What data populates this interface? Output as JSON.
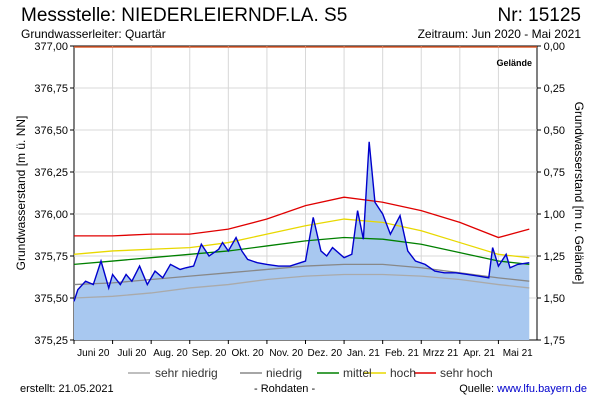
{
  "header": {
    "station": "Messstelle: NIEDERLEIERNDF.LA. S5",
    "number": "Nr: 15125",
    "aquifer": "Grundwasserleiter: Quartär",
    "period": "Zeitraum: Jun 2020 - Mai 2021"
  },
  "footer": {
    "created": "erstellt:  21.05.2021",
    "raw": "- Rohdaten -",
    "source_label": "Quelle: ",
    "source_link": "www.lfu.bayern.de"
  },
  "colors": {
    "measured_line": "#0000cc",
    "measured_fill": "#a8c8f0",
    "sehr_niedrig": "#aaaaaa",
    "niedrig": "#888888",
    "mittel": "#008000",
    "hoch": "#e8d800",
    "sehr_hoch": "#e00000",
    "gelaende": "#e06030",
    "grid": "#d8d8d8"
  },
  "chart_data": {
    "type": "line",
    "ylabel": "Grundwasserstand [m ü. NN]",
    "ylabel_right": "Grundwasserstand [m u. Gelände]",
    "ylim": [
      375.25,
      377.0
    ],
    "y_ticks": [
      "375,25",
      "375,50",
      "375,75",
      "376,00",
      "376,25",
      "376,50",
      "376,75",
      "377,00"
    ],
    "y_right_ticks": [
      "0,00",
      "0,25",
      "0,50",
      "0,75",
      "1,00",
      "1,25",
      "1,50",
      "1,75"
    ],
    "ground_level": 377.0,
    "ground_label": "Gelände",
    "x_ticks": [
      "Juni 20",
      "Juli 20",
      "Aug. 20",
      "Sep. 20",
      "Okt. 20",
      "Nov. 20",
      "Dez. 20",
      "Jan. 21",
      "Feb. 21",
      "Mrzz 21",
      "Apr. 21",
      "Mai 21"
    ],
    "grid": true,
    "legend_position": "bottom",
    "series": [
      {
        "name": "sehr niedrig",
        "x": [
          0,
          1,
          2,
          3,
          4,
          5,
          6,
          7,
          8,
          9,
          10,
          11,
          11.8
        ],
        "values": [
          375.5,
          375.51,
          375.53,
          375.56,
          375.58,
          375.61,
          375.63,
          375.64,
          375.64,
          375.63,
          375.61,
          375.58,
          375.56
        ]
      },
      {
        "name": "niedrig",
        "x": [
          0,
          1,
          2,
          3,
          4,
          5,
          6,
          7,
          8,
          9,
          10,
          11,
          11.8
        ],
        "values": [
          375.58,
          375.59,
          375.61,
          375.63,
          375.65,
          375.67,
          375.69,
          375.7,
          375.7,
          375.68,
          375.65,
          375.62,
          375.6
        ]
      },
      {
        "name": "mittel",
        "x": [
          0,
          1,
          2,
          3,
          4,
          5,
          6,
          7,
          8,
          9,
          10,
          11,
          11.8
        ],
        "values": [
          375.7,
          375.72,
          375.74,
          375.76,
          375.78,
          375.81,
          375.84,
          375.86,
          375.85,
          375.82,
          375.77,
          375.72,
          375.7
        ]
      },
      {
        "name": "hoch",
        "x": [
          0,
          1,
          2,
          3,
          4,
          5,
          6,
          7,
          8,
          9,
          10,
          11,
          11.8
        ],
        "values": [
          375.76,
          375.78,
          375.79,
          375.8,
          375.83,
          375.88,
          375.93,
          375.97,
          375.95,
          375.9,
          375.83,
          375.76,
          375.74
        ]
      },
      {
        "name": "sehr hoch",
        "x": [
          0,
          1,
          2,
          3,
          4,
          5,
          6,
          7,
          8,
          9,
          10,
          11,
          11.8
        ],
        "values": [
          375.87,
          375.87,
          375.88,
          375.88,
          375.91,
          375.97,
          376.05,
          376.1,
          376.07,
          376.02,
          375.95,
          375.86,
          375.91
        ]
      },
      {
        "name": "Rohdaten",
        "x": [
          0,
          0.1,
          0.3,
          0.5,
          0.7,
          0.9,
          1.0,
          1.2,
          1.35,
          1.5,
          1.7,
          1.9,
          2.1,
          2.3,
          2.5,
          2.75,
          2.9,
          3.1,
          3.3,
          3.5,
          3.75,
          3.85,
          4.0,
          4.2,
          4.35,
          4.5,
          4.75,
          5.0,
          5.3,
          5.6,
          6.0,
          6.2,
          6.4,
          6.55,
          6.7,
          7.0,
          7.2,
          7.35,
          7.5,
          7.65,
          7.8,
          8.0,
          8.2,
          8.45,
          8.65,
          8.85,
          9.1,
          9.35,
          9.6,
          9.9,
          10.2,
          10.5,
          10.75,
          10.85,
          11.0,
          11.2,
          11.3,
          11.5,
          11.8
        ],
        "values": [
          375.48,
          375.55,
          375.6,
          375.58,
          375.72,
          375.56,
          375.64,
          375.58,
          375.64,
          375.6,
          375.69,
          375.58,
          375.66,
          375.62,
          375.7,
          375.67,
          375.68,
          375.69,
          375.82,
          375.75,
          375.79,
          375.83,
          375.78,
          375.86,
          375.78,
          375.73,
          375.71,
          375.7,
          375.69,
          375.69,
          375.72,
          375.98,
          375.78,
          375.75,
          375.8,
          375.74,
          375.76,
          376.02,
          375.85,
          376.43,
          376.07,
          376.0,
          375.88,
          375.99,
          375.78,
          375.72,
          375.7,
          375.66,
          375.65,
          375.65,
          375.64,
          375.63,
          375.62,
          375.8,
          375.69,
          375.76,
          375.68,
          375.7,
          375.71
        ]
      }
    ]
  }
}
